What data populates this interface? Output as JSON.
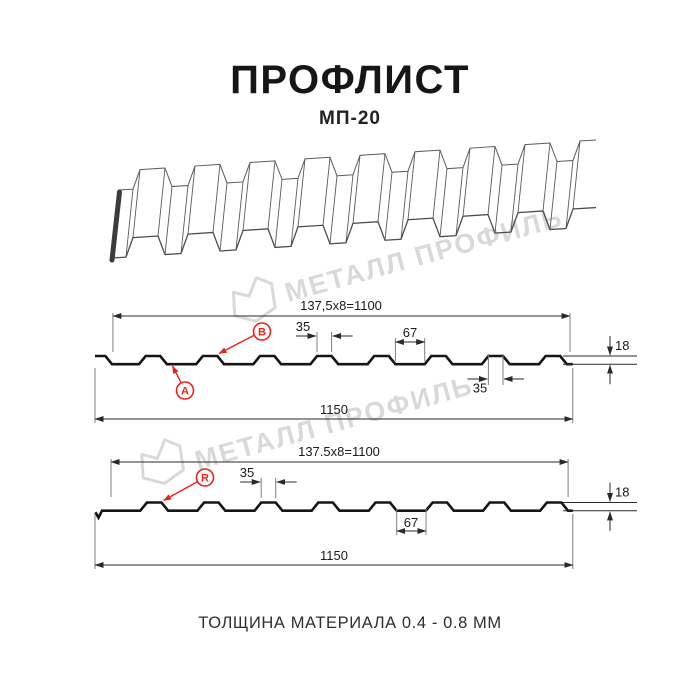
{
  "header": {
    "title": "ПРОФЛИСТ",
    "subtitle": "МП-20"
  },
  "watermark": {
    "text": "МЕТАЛЛ ПРОФИЛЬ"
  },
  "drawing1": {
    "span_dim": "137,5x8=1100",
    "rib_top_dim": "35",
    "valley_dim": "67",
    "rib_top_lower_dim": "35",
    "height_dim": "18",
    "total_width_dim": "1150",
    "side_label_a": "А",
    "side_label_b": "В"
  },
  "drawing2": {
    "span_dim": "137.5x8=1100",
    "rib_top_dim": "35",
    "valley_dim": "67",
    "height_dim": "18",
    "total_width_dim": "1150",
    "side_label_r": "R"
  },
  "footer": {
    "caption": "ТОЛЩИНА МАТЕРИАЛА 0.4 - 0.8 ММ"
  },
  "colors": {
    "accent_red": "#e8251d",
    "profile_line": "#151515",
    "annotation_line": "#2a2a2a",
    "extension_line": "#7d7d7d",
    "watermark_gray": "#d9d9d9",
    "background": "#ffffff"
  }
}
